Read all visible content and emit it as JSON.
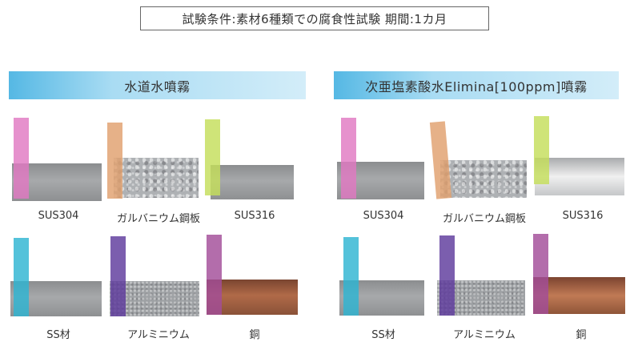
{
  "condition": "試験条件:素材6種類での腐食性試験 期間:1カ月",
  "panels": [
    {
      "title": "水道水噴霧",
      "samples": [
        {
          "label": "SUS304",
          "plate": "stainless steel",
          "strip_color": "#e079c2"
        },
        {
          "label": "ガルバニウム鋼板",
          "plate": "galvalume",
          "strip_color": "#e0a06e"
        },
        {
          "label": "SUS316",
          "plate": "stainless steel",
          "strip_color": "#c4de5a"
        },
        {
          "label": "SS材",
          "plate": "carbon steel",
          "strip_color": "#2eb4d2"
        },
        {
          "label": "アルミニウム",
          "plate": "aluminium",
          "strip_color": "#5e3a9c"
        },
        {
          "label": "銅",
          "plate": "copper",
          "strip_color": "#a24d98"
        }
      ]
    },
    {
      "title": "次亜塩素酸水Elimina[100ppm]噴霧",
      "samples": [
        {
          "label": "SUS304",
          "plate": "stainless steel",
          "strip_color": "#e079c2"
        },
        {
          "label": "ガルバニウム鋼板",
          "plate": "galvalume",
          "strip_color": "#e0a06e"
        },
        {
          "label": "SUS316",
          "plate": "stainless steel",
          "strip_color": "#c4de5a"
        },
        {
          "label": "SS材",
          "plate": "carbon steel",
          "strip_color": "#2eb4d2"
        },
        {
          "label": "アルミニウム",
          "plate": "aluminium",
          "strip_color": "#5e3a9c"
        },
        {
          "label": "銅",
          "plate": "copper",
          "strip_color": "#a24d98"
        }
      ]
    }
  ]
}
